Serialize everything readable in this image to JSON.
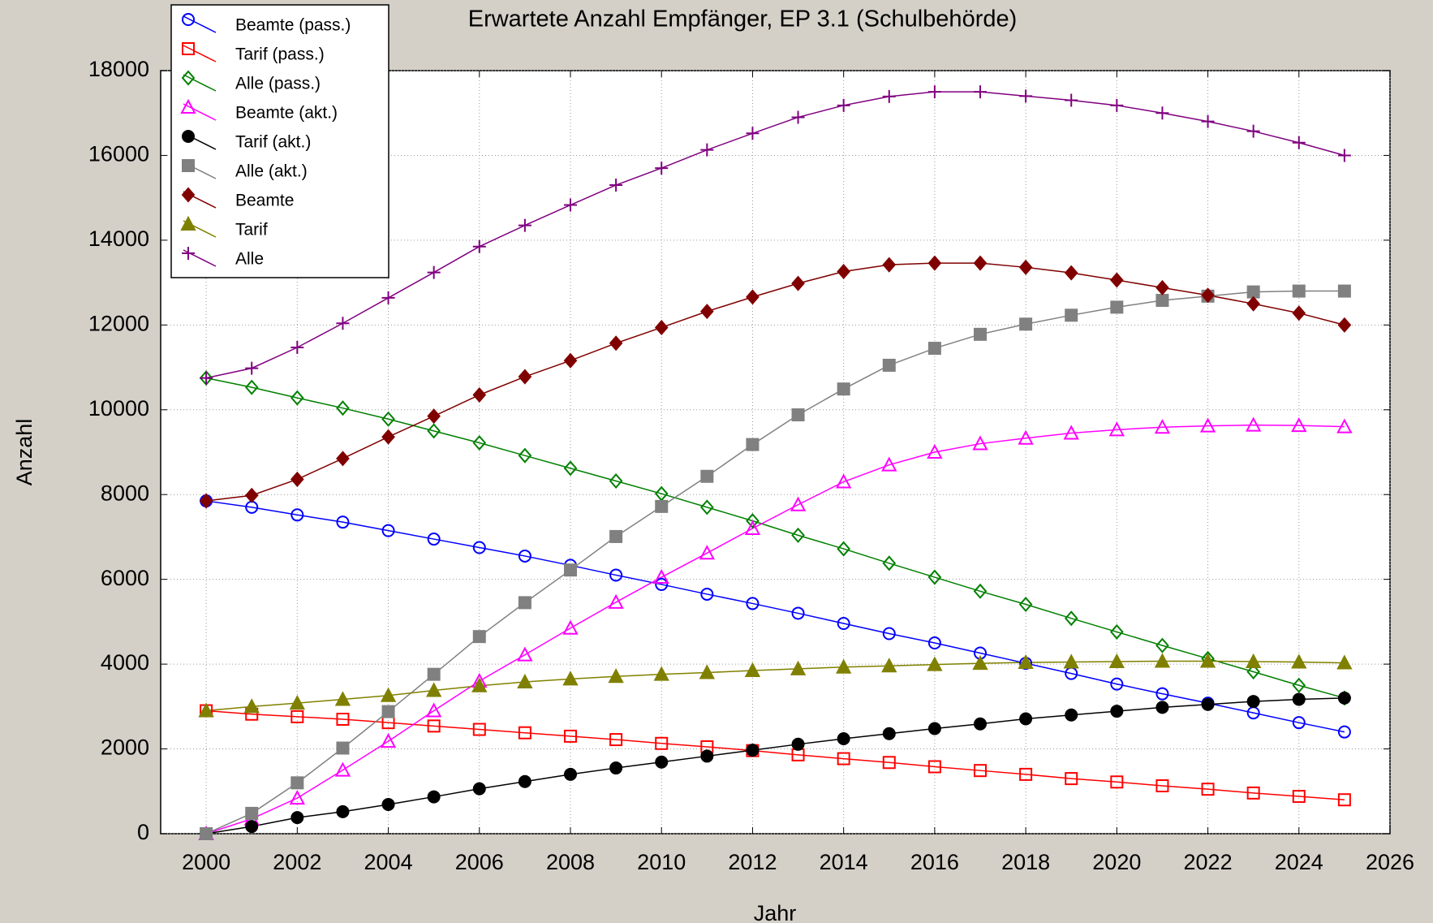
{
  "chart_data": {
    "type": "line",
    "title": "Erwartete Anzahl Empfänger, EP 3.1 (Schulbehörde)",
    "x_label": "Jahr",
    "y_label": "Anzahl",
    "x": [
      2000,
      2001,
      2002,
      2003,
      2004,
      2005,
      2006,
      2007,
      2008,
      2009,
      2010,
      2011,
      2012,
      2013,
      2014,
      2015,
      2016,
      2017,
      2018,
      2019,
      2020,
      2021,
      2022,
      2023,
      2024,
      2025
    ],
    "xlim": [
      1999,
      2026
    ],
    "xticks": [
      2000,
      2002,
      2004,
      2006,
      2008,
      2010,
      2012,
      2014,
      2016,
      2018,
      2020,
      2022,
      2024,
      2026
    ],
    "ylim": [
      0,
      18000
    ],
    "yticks": [
      0,
      2000,
      4000,
      6000,
      8000,
      10000,
      12000,
      14000,
      16000,
      18000
    ],
    "grid": true,
    "legend": "top-left",
    "series": [
      {
        "name": "Beamte (pass.)",
        "color": "#0000ff",
        "marker": "circle",
        "filled": false,
        "values": [
          7850,
          7700,
          7520,
          7350,
          7150,
          6950,
          6750,
          6550,
          6330,
          6100,
          5880,
          5650,
          5430,
          5200,
          4960,
          4720,
          4500,
          4260,
          4020,
          3780,
          3530,
          3300,
          3080,
          2850,
          2620,
          2400
        ]
      },
      {
        "name": "Tarif (pass.)",
        "color": "#ff0000",
        "marker": "square",
        "filled": false,
        "values": [
          2900,
          2820,
          2760,
          2700,
          2620,
          2540,
          2460,
          2380,
          2300,
          2220,
          2130,
          2050,
          1960,
          1860,
          1770,
          1680,
          1580,
          1490,
          1400,
          1300,
          1220,
          1130,
          1050,
          960,
          880,
          800
        ]
      },
      {
        "name": "Alle (pass.)",
        "color": "#008000",
        "marker": "diamond",
        "filled": false,
        "values": [
          10750,
          10530,
          10280,
          10040,
          9780,
          9500,
          9220,
          8920,
          8620,
          8320,
          8020,
          7700,
          7380,
          7040,
          6720,
          6380,
          6050,
          5720,
          5410,
          5080,
          4760,
          4440,
          4130,
          3820,
          3500,
          3200
        ]
      },
      {
        "name": "Beamte (akt.)",
        "color": "#ff00ff",
        "marker": "triangle",
        "filled": false,
        "values": [
          0,
          350,
          840,
          1500,
          2180,
          2900,
          3600,
          4220,
          4850,
          5460,
          6050,
          6620,
          7200,
          7760,
          8300,
          8700,
          9000,
          9200,
          9330,
          9450,
          9530,
          9590,
          9620,
          9640,
          9630,
          9600
        ]
      },
      {
        "name": "Tarif (akt.)",
        "color": "#000000",
        "marker": "circle",
        "filled": true,
        "values": [
          0,
          170,
          380,
          520,
          690,
          870,
          1060,
          1230,
          1400,
          1550,
          1690,
          1830,
          1970,
          2110,
          2240,
          2360,
          2480,
          2590,
          2710,
          2800,
          2890,
          2980,
          3050,
          3120,
          3170,
          3200
        ]
      },
      {
        "name": "Alle (akt.)",
        "color": "#808080",
        "marker": "square",
        "filled": true,
        "values": [
          0,
          480,
          1200,
          2020,
          2880,
          3760,
          4650,
          5450,
          6220,
          7010,
          7720,
          8430,
          9180,
          9880,
          10490,
          11050,
          11450,
          11780,
          12020,
          12230,
          12420,
          12580,
          12680,
          12780,
          12800,
          12800
        ]
      },
      {
        "name": "Beamte",
        "color": "#800000",
        "marker": "diamond",
        "filled": true,
        "values": [
          7850,
          7980,
          8360,
          8850,
          9360,
          9850,
          10350,
          10780,
          11160,
          11570,
          11940,
          12320,
          12660,
          12980,
          13260,
          13420,
          13460,
          13460,
          13360,
          13230,
          13060,
          12880,
          12700,
          12500,
          12280,
          12000
        ]
      },
      {
        "name": "Tarif",
        "color": "#808000",
        "marker": "triangle",
        "filled": true,
        "values": [
          2900,
          3000,
          3080,
          3170,
          3260,
          3380,
          3490,
          3580,
          3650,
          3710,
          3760,
          3800,
          3850,
          3890,
          3930,
          3960,
          3990,
          4020,
          4040,
          4050,
          4060,
          4070,
          4070,
          4060,
          4050,
          4030
        ]
      },
      {
        "name": "Alle",
        "color": "#800080",
        "marker": "plus",
        "filled": false,
        "values": [
          10750,
          10980,
          11470,
          12040,
          12640,
          13240,
          13850,
          14350,
          14830,
          15300,
          15700,
          16130,
          16520,
          16900,
          17180,
          17390,
          17500,
          17500,
          17400,
          17300,
          17180,
          17000,
          16800,
          16570,
          16300,
          16000
        ]
      }
    ]
  }
}
